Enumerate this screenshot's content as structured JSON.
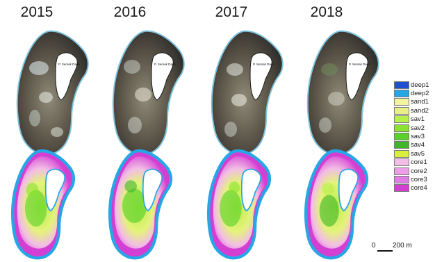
{
  "years": [
    "2015",
    "2016",
    "2017",
    "2018"
  ],
  "place_label": "P. Semak Daun",
  "legend": [
    {
      "label": "deep1",
      "color": "#1d4fcf"
    },
    {
      "label": "deep2",
      "color": "#27a6e6"
    },
    {
      "label": "sand1",
      "color": "#f4f3a0"
    },
    {
      "label": "sand2",
      "color": "#e8ef84"
    },
    {
      "label": "sav1",
      "color": "#b6f04a"
    },
    {
      "label": "sav2",
      "color": "#8be32f"
    },
    {
      "label": "sav3",
      "color": "#5ad12a"
    },
    {
      "label": "sav4",
      "color": "#3fb52a"
    },
    {
      "label": "sav5",
      "color": "#d9ef3a"
    },
    {
      "label": "core1",
      "color": "#f2bde6"
    },
    {
      "label": "core2",
      "color": "#ee9ee8"
    },
    {
      "label": "core3",
      "color": "#e07ee6"
    },
    {
      "label": "core4",
      "color": "#d43fd3"
    }
  ],
  "scale": {
    "zero": "0",
    "label": "200 m"
  }
}
